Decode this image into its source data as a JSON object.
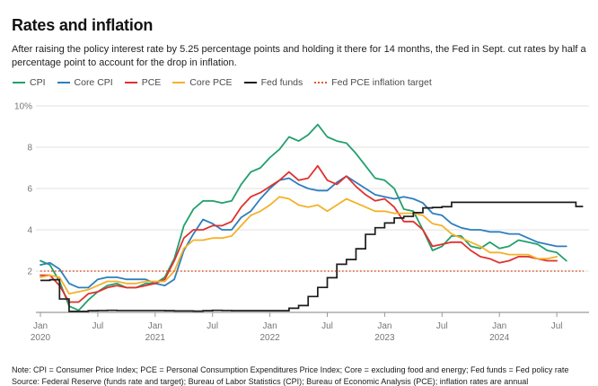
{
  "header": {
    "title": "Rates and inflation",
    "subtitle": "After raising the policy interest rate by 5.25 percentage points and holding it there for 14 months, the Fed in Sept. cut rates by half a percentage point to account for the drop in inflation."
  },
  "footer": {
    "note": "Note: CPI = Consumer Price Index; PCE = Personal Consumption Expenditures Price Index; Core = excluding food and energy; Fed funds = Fed policy rate",
    "source": "Source: Federal Reserve (funds rate and target); Bureau of Labor Statistics (CPI); Bureau of Economic Analysis (PCE); inflation rates are annual"
  },
  "chart_data": {
    "type": "line",
    "title": "Rates and inflation",
    "x_unit": "month",
    "x_start": "2020-01",
    "x_end": "2024-09",
    "ylim": [
      0,
      10
    ],
    "grid": true,
    "legend_position": "top",
    "colors": {
      "grid": "#e0e0e0",
      "baseline": "#ababab",
      "tick": "#999999",
      "axis_text": "#767676"
    },
    "y_ticks": [
      {
        "value": 10,
        "label": "10%"
      },
      {
        "value": 8,
        "label": "8"
      },
      {
        "value": 6,
        "label": "6"
      },
      {
        "value": 4,
        "label": "4"
      },
      {
        "value": 2,
        "label": "2"
      },
      {
        "value": 0,
        "label": ""
      }
    ],
    "x_ticks": [
      {
        "month": 0,
        "label": "Jan",
        "year": "2020"
      },
      {
        "month": 6,
        "label": "Jul"
      },
      {
        "month": 12,
        "label": "Jan",
        "year": "2021"
      },
      {
        "month": 18,
        "label": "Jul"
      },
      {
        "month": 24,
        "label": "Jan",
        "year": "2022"
      },
      {
        "month": 30,
        "label": "Jul"
      },
      {
        "month": 36,
        "label": "Jan",
        "year": "2023"
      },
      {
        "month": 42,
        "label": "Jul"
      },
      {
        "month": 48,
        "label": "Jan",
        "year": "2024"
      },
      {
        "month": 54,
        "label": "Jul"
      }
    ],
    "series": [
      {
        "name": "CPI",
        "render": "line",
        "color": "#22a06c",
        "values": [
          2.5,
          2.3,
          1.5,
          0.3,
          0.1,
          0.6,
          1.0,
          1.3,
          1.4,
          1.2,
          1.2,
          1.4,
          1.4,
          1.7,
          2.6,
          4.2,
          5.0,
          5.4,
          5.4,
          5.3,
          5.4,
          6.2,
          6.8,
          7.0,
          7.5,
          7.9,
          8.5,
          8.3,
          8.6,
          9.1,
          8.5,
          8.3,
          8.2,
          7.7,
          7.1,
          6.5,
          6.4,
          6.0,
          5.0,
          4.9,
          4.0,
          3.0,
          3.2,
          3.7,
          3.7,
          3.2,
          3.1,
          3.4,
          3.1,
          3.2,
          3.5,
          3.4,
          3.3,
          3.0,
          2.9,
          2.5
        ]
      },
      {
        "name": "Core CPI",
        "render": "line",
        "color": "#2e7ebd",
        "values": [
          2.3,
          2.4,
          2.1,
          1.4,
          1.2,
          1.2,
          1.6,
          1.7,
          1.7,
          1.6,
          1.6,
          1.6,
          1.4,
          1.3,
          1.6,
          3.0,
          3.8,
          4.5,
          4.3,
          4.0,
          4.0,
          4.6,
          4.9,
          5.5,
          6.0,
          6.4,
          6.5,
          6.2,
          6.0,
          5.9,
          5.9,
          6.3,
          6.6,
          6.3,
          6.0,
          5.7,
          5.6,
          5.5,
          5.6,
          5.5,
          5.3,
          4.8,
          4.7,
          4.3,
          4.1,
          4.0,
          4.0,
          3.9,
          3.9,
          3.8,
          3.8,
          3.6,
          3.4,
          3.3,
          3.2,
          3.2
        ]
      },
      {
        "name": "PCE",
        "render": "line",
        "color": "#e0312e",
        "values": [
          1.8,
          1.8,
          1.3,
          0.5,
          0.5,
          0.9,
          1.0,
          1.2,
          1.3,
          1.2,
          1.2,
          1.3,
          1.4,
          1.6,
          2.5,
          3.6,
          4.0,
          4.0,
          4.2,
          4.2,
          4.4,
          5.1,
          5.6,
          5.8,
          6.1,
          6.4,
          6.8,
          6.4,
          6.5,
          7.1,
          6.4,
          6.2,
          6.6,
          6.1,
          5.7,
          5.4,
          5.5,
          5.1,
          4.4,
          4.4,
          4.0,
          3.2,
          3.3,
          3.4,
          3.4,
          3.0,
          2.7,
          2.6,
          2.4,
          2.5,
          2.7,
          2.7,
          2.6,
          2.5,
          2.5
        ]
      },
      {
        "name": "Core PCE",
        "render": "line",
        "color": "#f3b229",
        "values": [
          1.7,
          1.8,
          1.7,
          0.9,
          1.0,
          1.1,
          1.3,
          1.5,
          1.5,
          1.4,
          1.4,
          1.5,
          1.5,
          1.5,
          2.0,
          3.1,
          3.5,
          3.5,
          3.6,
          3.6,
          3.7,
          4.2,
          4.7,
          4.9,
          5.2,
          5.6,
          5.5,
          5.2,
          5.1,
          5.2,
          4.9,
          5.2,
          5.5,
          5.3,
          5.1,
          4.9,
          4.9,
          4.8,
          4.8,
          4.8,
          4.7,
          4.3,
          4.2,
          3.8,
          3.6,
          3.4,
          3.2,
          2.9,
          2.9,
          2.8,
          2.8,
          2.8,
          2.6,
          2.6,
          2.7
        ]
      },
      {
        "name": "Fed funds",
        "render": "step",
        "color": "#1c1c1c",
        "values": [
          1.55,
          1.58,
          0.65,
          0.05,
          0.05,
          0.08,
          0.09,
          0.1,
          0.09,
          0.09,
          0.09,
          0.09,
          0.09,
          0.08,
          0.07,
          0.07,
          0.06,
          0.08,
          0.1,
          0.09,
          0.08,
          0.08,
          0.08,
          0.08,
          0.08,
          0.08,
          0.2,
          0.33,
          0.77,
          1.21,
          1.68,
          2.33,
          2.56,
          3.08,
          3.78,
          4.1,
          4.33,
          4.57,
          4.65,
          4.83,
          5.06,
          5.08,
          5.12,
          5.33,
          5.33,
          5.33,
          5.33,
          5.33,
          5.33,
          5.33,
          5.33,
          5.33,
          5.33,
          5.33,
          5.33,
          5.33,
          5.13
        ]
      },
      {
        "name": "Fed PCE inflation target",
        "render": "dashed",
        "color": "#e4582b",
        "value": 2.0
      }
    ]
  }
}
